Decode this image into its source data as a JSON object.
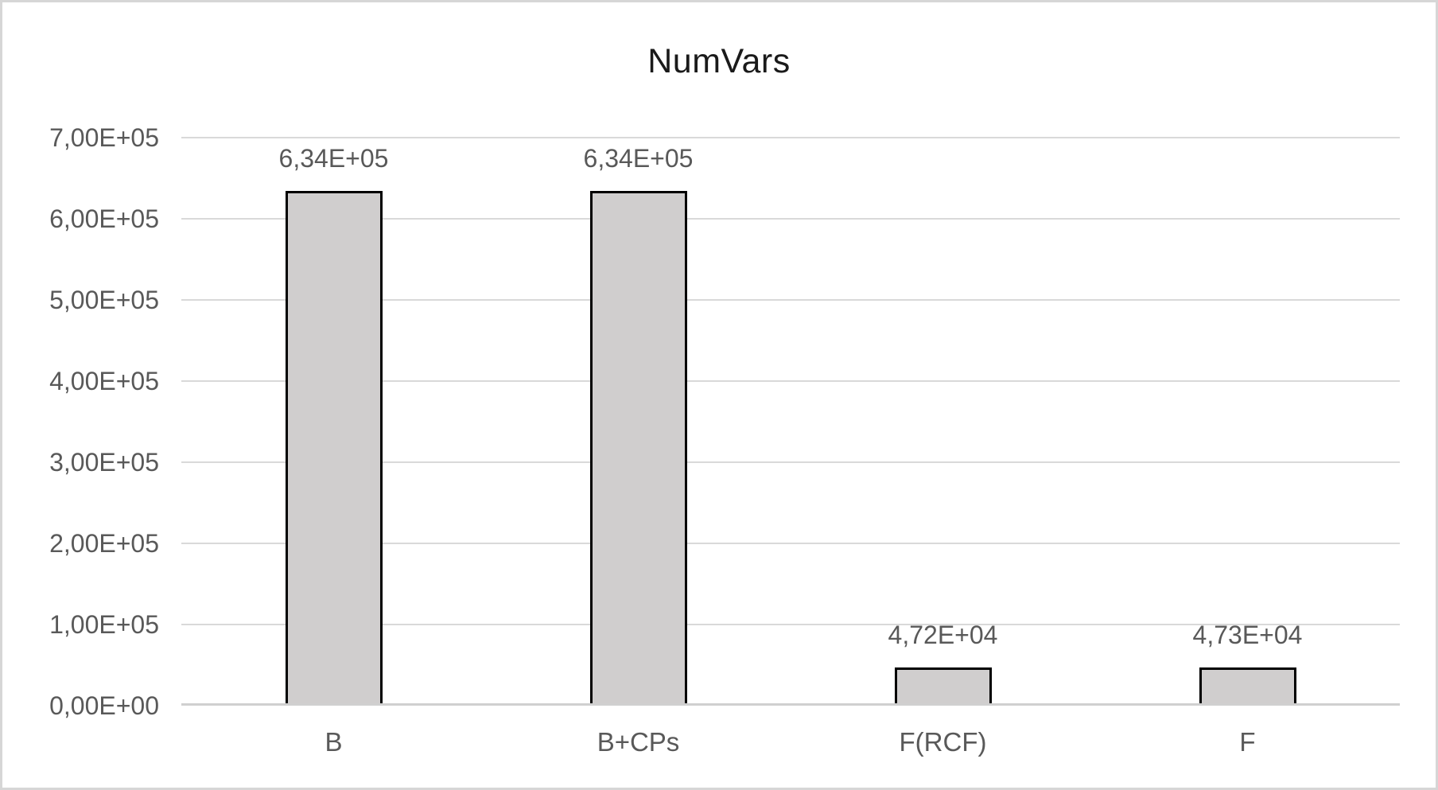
{
  "chart_data": {
    "type": "bar",
    "title": "NumVars",
    "categories": [
      "B",
      "B+CPs",
      "F(RCF)",
      "F"
    ],
    "values": [
      634000,
      634000,
      47200,
      47300
    ],
    "value_labels": [
      "6,34E+05",
      "6,34E+05",
      "4,72E+04",
      "4,73E+04"
    ],
    "xlabel": "",
    "ylabel": "",
    "ylim": [
      0,
      700000
    ],
    "ytick_values": [
      0,
      100000,
      200000,
      300000,
      400000,
      500000,
      600000,
      700000
    ],
    "ytick_labels": [
      "0,00E+00",
      "1,00E+05",
      "2,00E+05",
      "3,00E+05",
      "4,00E+05",
      "5,00E+05",
      "6,00E+05",
      "7,00E+05"
    ],
    "grid": true,
    "legend_position": "none",
    "colors": {
      "bar_fill": "#d0cece",
      "bar_border": "#000000",
      "gridline": "#d9d9d9",
      "axis_line": "#d0d0d0",
      "tick_text": "#595959",
      "title_text": "#1a1a1a",
      "frame_border": "#d6d6d6",
      "background": "#ffffff"
    }
  }
}
